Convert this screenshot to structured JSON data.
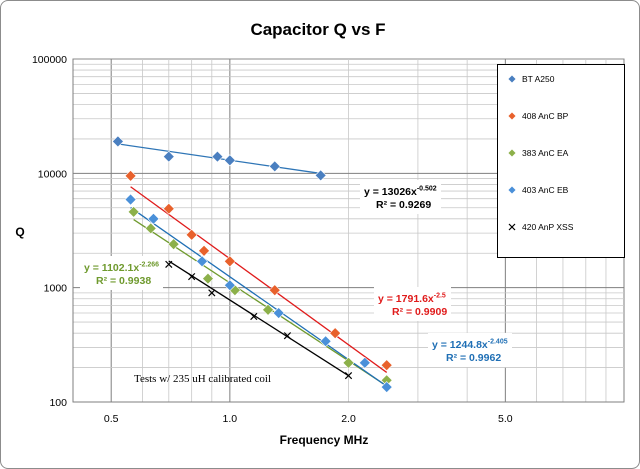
{
  "chart_data": {
    "type": "scatter",
    "title": "Capacitor Q  vs F",
    "xlabel": "Frequency MHz",
    "ylabel": "Q",
    "xscale": "log",
    "yscale": "log",
    "xlim": [
      0.4,
      10
    ],
    "ylim": [
      100,
      100000
    ],
    "x_tick_labels": [
      "0.5",
      "1.0",
      "2.0",
      "5.0"
    ],
    "y_tick_labels": [
      "100",
      "1000",
      "10000",
      "100000"
    ],
    "grid": true,
    "legend_position": "right",
    "series": [
      {
        "name": "BT A250",
        "color": "#4a7fc0",
        "marker": "diamond",
        "points": [
          [
            0.52,
            19000
          ],
          [
            0.7,
            14000
          ],
          [
            0.93,
            14000
          ],
          [
            1.0,
            13000
          ],
          [
            1.3,
            11500
          ],
          [
            1.7,
            9600
          ]
        ],
        "trendline": {
          "a": 13026,
          "b": -0.502,
          "color": "#2e75b6",
          "x_range": [
            0.52,
            1.7
          ]
        }
      },
      {
        "name": "408 AnC BP",
        "color": "#e8612c",
        "marker": "diamond",
        "points": [
          [
            0.56,
            9500
          ],
          [
            0.7,
            4900
          ],
          [
            0.8,
            2900
          ],
          [
            0.86,
            2100
          ],
          [
            1.0,
            1700
          ],
          [
            1.3,
            950
          ],
          [
            1.85,
            400
          ],
          [
            2.5,
            210
          ]
        ],
        "trendline": {
          "a": 1791.6,
          "b": -2.5,
          "color": "#e01b1b",
          "x_range": [
            0.56,
            2.5
          ]
        }
      },
      {
        "name": "383 AnC EA",
        "color": "#8cb04a",
        "marker": "diamond",
        "points": [
          [
            0.57,
            4600
          ],
          [
            0.63,
            3300
          ],
          [
            0.72,
            2400
          ],
          [
            0.88,
            1200
          ],
          [
            1.03,
            950
          ],
          [
            1.25,
            640
          ],
          [
            2.0,
            220
          ],
          [
            2.5,
            155
          ]
        ],
        "trendline": {
          "a": 1102.1,
          "b": -2.266,
          "color": "#6f9a2e",
          "x_range": [
            0.57,
            2.5
          ]
        }
      },
      {
        "name": "403 AnC EB",
        "color": "#4a90d9",
        "marker": "diamond",
        "points": [
          [
            0.56,
            5900
          ],
          [
            0.64,
            4000
          ],
          [
            0.85,
            1700
          ],
          [
            1.0,
            1050
          ],
          [
            1.33,
            600
          ],
          [
            1.75,
            340
          ],
          [
            2.2,
            220
          ],
          [
            2.5,
            135
          ]
        ],
        "trendline": {
          "a": 1244.8,
          "b": -2.405,
          "color": "#1f6fb5",
          "x_range": [
            0.56,
            2.5
          ]
        }
      },
      {
        "name": "420 AnP XSS",
        "color": "#000000",
        "marker": "x",
        "points": [
          [
            0.7,
            1600
          ],
          [
            0.8,
            1250
          ],
          [
            0.9,
            900
          ],
          [
            1.15,
            560
          ],
          [
            1.4,
            380
          ],
          [
            2.0,
            170
          ]
        ],
        "trendline": {
          "a": 780,
          "b": -2.2,
          "color": "#000000",
          "x_range": [
            0.7,
            2.0
          ]
        }
      }
    ],
    "annotations": [
      {
        "prefix": "y = 13026x",
        "exp": "-0.502",
        "r2": "R² = 0.9269",
        "color": "#000000"
      },
      {
        "prefix": "y = 1102.1x",
        "exp": "-2.266",
        "r2": "R² = 0.9938",
        "color": "#6f9a2e"
      },
      {
        "prefix": "y = 1791.6x",
        "exp": "-2.5",
        "r2": "R² = 0.9909",
        "color": "#e01b1b"
      },
      {
        "prefix": "y = 1244.8x",
        "exp": "-2.405",
        "r2": "R² = 0.9962",
        "color": "#1f6fb5"
      }
    ],
    "note": "Tests w/ 235 uH calibrated coil"
  }
}
